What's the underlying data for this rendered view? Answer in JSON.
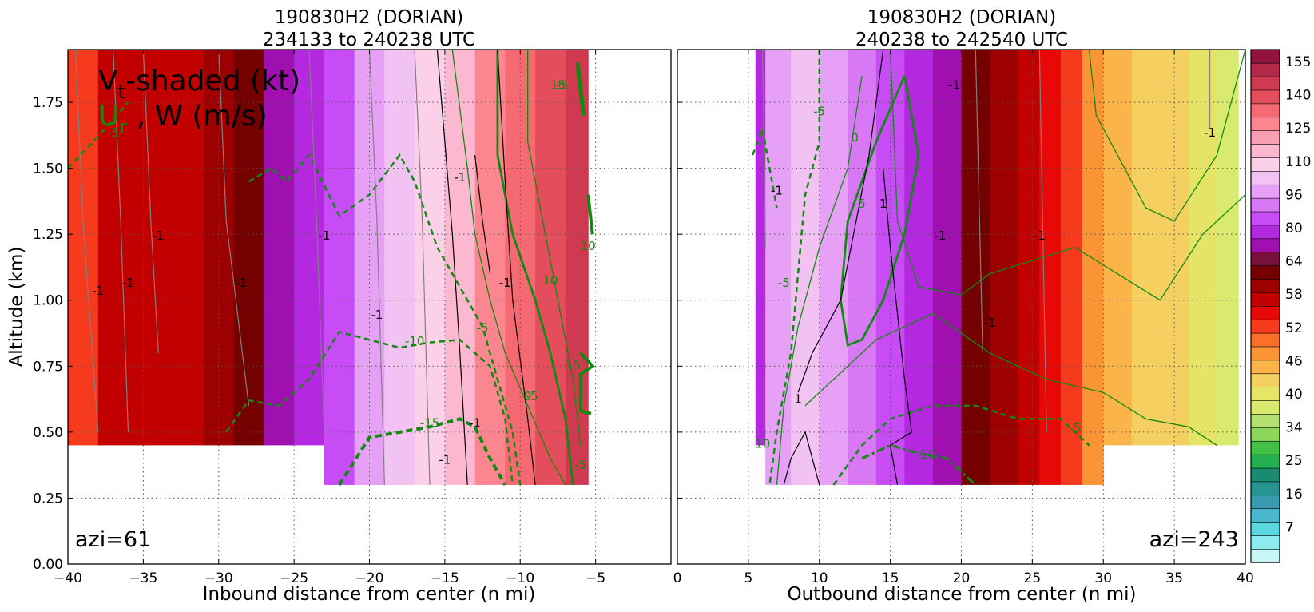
{
  "chart_data": {
    "type": "heatmap",
    "colors": {
      "shade": [
        "#c8f7f7",
        "#8ceaf0",
        "#5cd6e0",
        "#4ab8cc",
        "#3a9aae",
        "#279494",
        "#1a8a70",
        "#22b050",
        "#44c044",
        "#8cd65a",
        "#b4e070",
        "#d8ea70",
        "#e6e466",
        "#f5d060",
        "#fbb44a",
        "#fb9434",
        "#fb6e2a",
        "#f53a1e",
        "#e80808",
        "#c20000",
        "#9c0000",
        "#740000",
        "#78103c",
        "#a010b0",
        "#b428e0",
        "#c84cf5",
        "#d878f5",
        "#e6a0f5",
        "#f2c2f2",
        "#fbd0e8",
        "#fbb8d0",
        "#fba0b4",
        "#fb8690",
        "#f56a72",
        "#e44e5c",
        "#d03a50",
        "#b4284a",
        "#92143c"
      ],
      "rmw_contour": "#000000",
      "radial_contour": "#118a11",
      "w_contour": "#808080"
    },
    "panels": [
      {
        "title": [
          "190830H2 (DORIAN)",
          "234133 to 240238 UTC"
        ],
        "xlabel": "Inbound distance from center (n mi)",
        "ylabel": "Altitude (km)",
        "xlim": [
          -40,
          0
        ],
        "ylim": [
          0.0,
          1.95
        ],
        "xticks": [
          "−40",
          "−35",
          "−30",
          "−25",
          "−20",
          "−15",
          "−10",
          "−5"
        ],
        "yticks": [
          "0.00",
          "0.25",
          "0.50",
          "0.75",
          "1.00",
          "1.25",
          "1.50",
          "1.75"
        ],
        "legend": {
          "line1_main": "V",
          "line1_sub": "t",
          "line1_rest": "-shaded (kt)",
          "line2_main": "U",
          "line2_sub": "r",
          "line2_rest": " , W (m/s)"
        },
        "annotation": "azi=61",
        "tangential_wind_kt": [
          {
            "x": -40,
            "v": 60
          },
          {
            "x": -38,
            "v": 64
          },
          {
            "x": -33,
            "v": 66
          },
          {
            "x": -31,
            "v": 70
          },
          {
            "x": -29,
            "v": 74
          },
          {
            "x": -27,
            "v": 80
          },
          {
            "x": -25,
            "v": 86
          },
          {
            "x": -23,
            "v": 90
          },
          {
            "x": -21,
            "v": 96
          },
          {
            "x": -19,
            "v": 100
          },
          {
            "x": -17,
            "v": 104
          },
          {
            "x": -15,
            "v": 110
          },
          {
            "x": -13,
            "v": 116
          },
          {
            "x": -11,
            "v": 122
          },
          {
            "x": -9,
            "v": 128
          },
          {
            "x": -7,
            "v": 134
          },
          {
            "x": -5.5,
            "v": 120
          }
        ],
        "contour_labels": [
          {
            "text": "-1",
            "x": -34.0,
            "y": 1.23,
            "kind": "w"
          },
          {
            "text": "-1",
            "x": -38.0,
            "y": 1.02,
            "kind": "w"
          },
          {
            "text": "-1",
            "x": -36.0,
            "y": 1.05,
            "kind": "w"
          },
          {
            "text": "-1",
            "x": -28.5,
            "y": 1.05,
            "kind": "w"
          },
          {
            "text": "-1",
            "x": -23.0,
            "y": 1.23,
            "kind": "w"
          },
          {
            "text": "-1",
            "x": -19.5,
            "y": 0.93,
            "kind": "w"
          },
          {
            "text": "-1",
            "x": -14.0,
            "y": 1.45,
            "kind": "w"
          },
          {
            "text": "-1",
            "x": -11.0,
            "y": 1.05,
            "kind": "w"
          },
          {
            "text": "-1",
            "x": -15.0,
            "y": 0.38,
            "kind": "w"
          },
          {
            "text": "-1",
            "x": -13.0,
            "y": 0.52,
            "kind": "w"
          },
          {
            "text": "-5",
            "x": -37.0,
            "y": 1.62,
            "kind": "ur"
          },
          {
            "text": "-10",
            "x": -17.0,
            "y": 0.83,
            "kind": "ur"
          },
          {
            "text": "-15",
            "x": -16.0,
            "y": 0.52,
            "kind": "ur"
          },
          {
            "text": "-5",
            "x": -12.5,
            "y": 0.88,
            "kind": "ur"
          },
          {
            "text": "0",
            "x": -9.5,
            "y": 0.62,
            "kind": "ur"
          },
          {
            "text": "-5",
            "x": -9.2,
            "y": 0.62,
            "kind": "ur"
          },
          {
            "text": "10",
            "x": -8.0,
            "y": 1.06,
            "kind": "ur"
          },
          {
            "text": "15",
            "x": -6.5,
            "y": 0.74,
            "kind": "ur"
          },
          {
            "text": "10",
            "x": -5.5,
            "y": 1.19,
            "kind": "ur"
          },
          {
            "text": "-5",
            "x": -6.0,
            "y": 0.36,
            "kind": "ur"
          },
          {
            "text": "15",
            "x": -7.5,
            "y": 1.8,
            "kind": "ur"
          },
          {
            "text": "-5",
            "x": -7.2,
            "y": 1.8,
            "kind": "ur"
          }
        ]
      },
      {
        "title": [
          "190830H2 (DORIAN)",
          "240238 to 242540 UTC"
        ],
        "xlabel": "Outbound distance from center (n mi)",
        "xlim": [
          0,
          40
        ],
        "ylim": [
          0.0,
          1.95
        ],
        "xticks": [
          "0",
          "5",
          "10",
          "15",
          "20",
          "25",
          "30",
          "35",
          "40"
        ],
        "annotation": "azi=243",
        "tangential_wind_kt": [
          {
            "x": 5.5,
            "v": 84
          },
          {
            "x": 6.2,
            "v": 96
          },
          {
            "x": 8,
            "v": 100
          },
          {
            "x": 10,
            "v": 96
          },
          {
            "x": 12,
            "v": 92
          },
          {
            "x": 14,
            "v": 88
          },
          {
            "x": 16,
            "v": 84
          },
          {
            "x": 18,
            "v": 80
          },
          {
            "x": 20,
            "v": 72
          },
          {
            "x": 22,
            "v": 70
          },
          {
            "x": 24,
            "v": 66
          },
          {
            "x": 25.5,
            "v": 62
          },
          {
            "x": 27,
            "v": 58
          },
          {
            "x": 28.5,
            "v": 54
          },
          {
            "x": 30,
            "v": 50
          },
          {
            "x": 32,
            "v": 48
          },
          {
            "x": 34,
            "v": 46
          },
          {
            "x": 36,
            "v": 44
          },
          {
            "x": 38,
            "v": 40
          },
          {
            "x": 39.5,
            "v": 42
          }
        ],
        "contour_labels": [
          {
            "text": "-1",
            "x": 19.5,
            "y": 1.8,
            "kind": "w"
          },
          {
            "text": "-1",
            "x": 37.5,
            "y": 1.62,
            "kind": "w"
          },
          {
            "text": "-1",
            "x": 7.0,
            "y": 1.4,
            "kind": "w"
          },
          {
            "text": "-1",
            "x": 18.5,
            "y": 1.23,
            "kind": "w"
          },
          {
            "text": "-1",
            "x": 25.5,
            "y": 1.23,
            "kind": "w"
          },
          {
            "text": "-1",
            "x": 22.0,
            "y": 0.9,
            "kind": "w"
          },
          {
            "text": "1",
            "x": 14.5,
            "y": 1.35,
            "kind": "rmw"
          },
          {
            "text": "1",
            "x": 8.5,
            "y": 0.61,
            "kind": "rmw"
          },
          {
            "text": "-5",
            "x": 10.0,
            "y": 1.7,
            "kind": "ur"
          },
          {
            "text": "0",
            "x": 12.5,
            "y": 1.6,
            "kind": "ur"
          },
          {
            "text": "5",
            "x": 13.0,
            "y": 1.35,
            "kind": "ur"
          },
          {
            "text": "-5",
            "x": 7.5,
            "y": 1.05,
            "kind": "ur"
          },
          {
            "text": "-10",
            "x": 17.5,
            "y": 0.4,
            "kind": "ur"
          },
          {
            "text": "-5",
            "x": 28.0,
            "y": 0.5,
            "kind": "ur"
          },
          {
            "text": "10",
            "x": 6.0,
            "y": 0.44,
            "kind": "ur"
          }
        ]
      }
    ],
    "colorbar": {
      "label_values": [
        "155",
        "140",
        "125",
        "110",
        "96",
        "80",
        "64",
        "58",
        "52",
        "46",
        "40",
        "34",
        "25",
        "16",
        "7"
      ]
    }
  }
}
